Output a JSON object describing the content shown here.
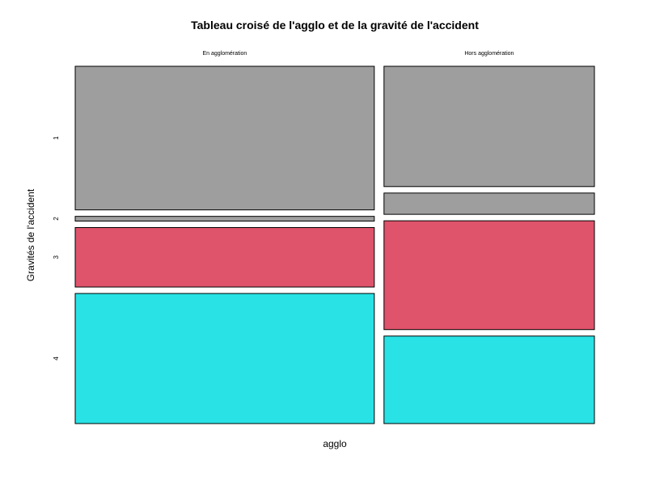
{
  "chart_data": {
    "type": "mosaic",
    "title": "Tableau croisé de l'agglo et de la gravité de l'accident",
    "xlabel": "agglo",
    "ylabel": "Gravités de l'accident",
    "columns": [
      "En agglomération",
      "Hors agglomération"
    ],
    "rows": [
      "1",
      "2",
      "3",
      "4"
    ],
    "row_colors": [
      "#9E9E9E",
      "#9E9E9E",
      "#DF536B",
      "#28E2E5"
    ],
    "column_share": [
      0.587,
      0.413
    ],
    "proportions": [
      [
        0.425,
        0.014,
        0.176,
        0.385
      ],
      [
        0.356,
        0.063,
        0.322,
        0.259
      ]
    ]
  }
}
